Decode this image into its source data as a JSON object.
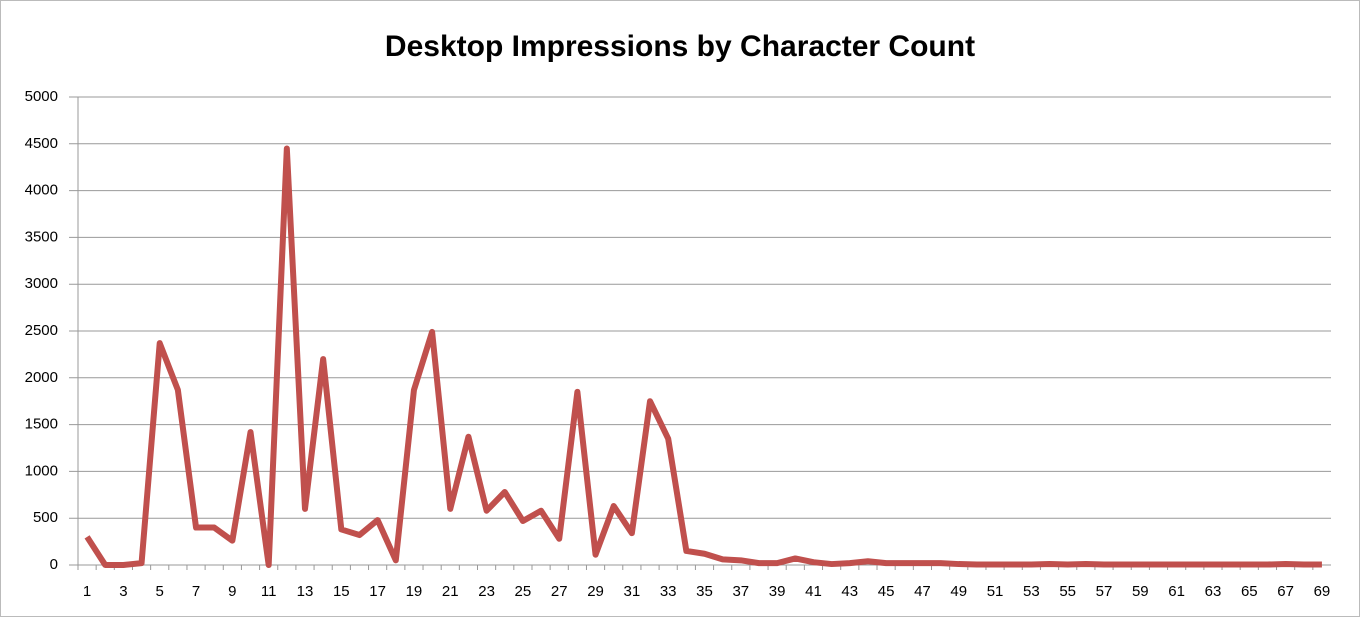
{
  "chart_data": {
    "type": "line",
    "title": "Desktop Impressions by Character Count",
    "categories": [
      1,
      null,
      3,
      null,
      5,
      null,
      7,
      null,
      9,
      null,
      11,
      null,
      13,
      null,
      15,
      null,
      17,
      null,
      19,
      null,
      21,
      null,
      23,
      null,
      25,
      null,
      27,
      null,
      29,
      null,
      31,
      null,
      33,
      null,
      35,
      null,
      37,
      null,
      39,
      null,
      41,
      null,
      43,
      null,
      45,
      null,
      47,
      null,
      49,
      null,
      51,
      null,
      53,
      null,
      55,
      null,
      57,
      null,
      59,
      null,
      61,
      null,
      63,
      null,
      65,
      null,
      67,
      null,
      69
    ],
    "series": [
      {
        "name": "Desktop Impressions",
        "color": "#c0504d",
        "values": [
          300,
          0,
          0,
          20,
          2370,
          1870,
          400,
          400,
          260,
          1420,
          0,
          4450,
          600,
          2200,
          380,
          320,
          480,
          50,
          1870,
          2490,
          600,
          1370,
          580,
          780,
          470,
          580,
          280,
          1850,
          110,
          630,
          340,
          1750,
          1350,
          150,
          120,
          60,
          50,
          20,
          20,
          70,
          30,
          10,
          20,
          40,
          20,
          20,
          20,
          20,
          10,
          5,
          5,
          5,
          5,
          10,
          5,
          10,
          5,
          5,
          5,
          5,
          5,
          5,
          5,
          5,
          5,
          5,
          10,
          5,
          5
        ]
      }
    ],
    "ylim": [
      0,
      5000
    ],
    "yticks": [
      0,
      500,
      1000,
      1500,
      2000,
      2500,
      3000,
      3500,
      4000,
      4500,
      5000
    ],
    "grid": true
  }
}
